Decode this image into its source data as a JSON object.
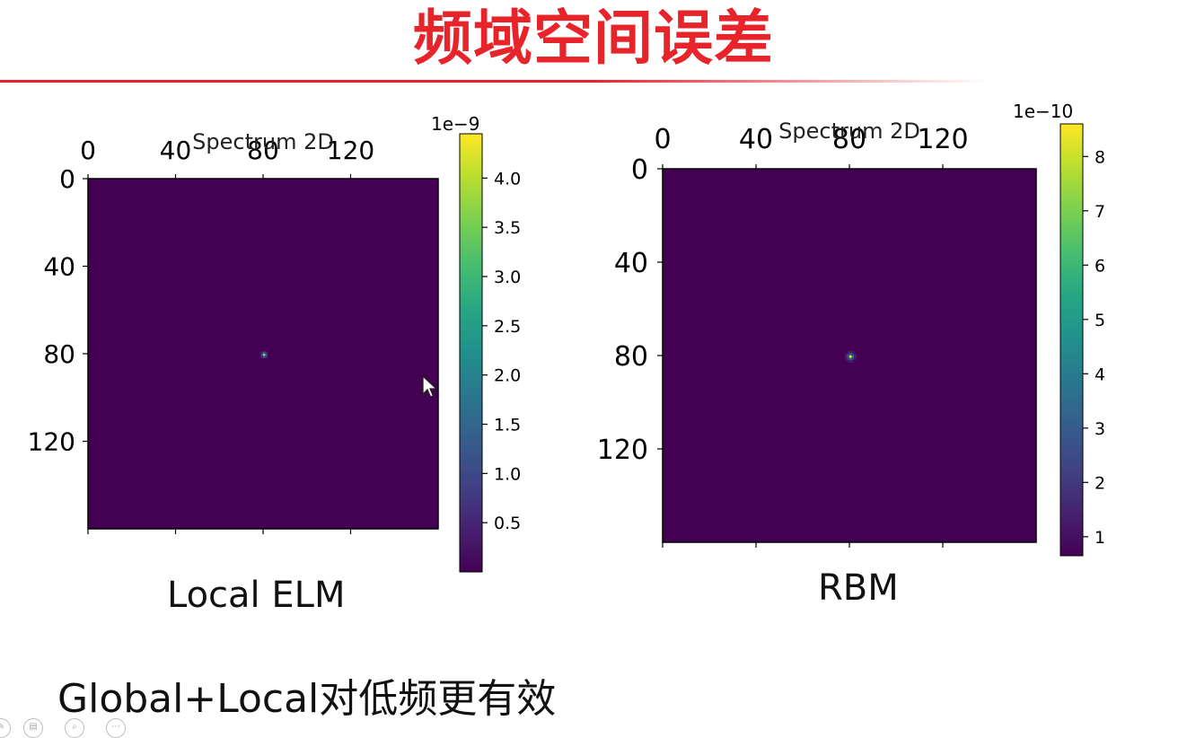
{
  "slide": {
    "title": "频域空间误差",
    "title_color": "#e8242b",
    "footer": "Global+Local对低频更有效"
  },
  "chart_data": [
    {
      "type": "heatmap",
      "title": "Spectrum 2D",
      "caption": "Local ELM",
      "x_ticks": [
        "0",
        "40",
        "80",
        "120"
      ],
      "y_ticks": [
        "0",
        "40",
        "80",
        "120"
      ],
      "x_range": [
        0,
        160
      ],
      "y_range": [
        0,
        160
      ],
      "peak": {
        "x": 80,
        "y": 80,
        "spread": "narrow"
      },
      "colorbar": {
        "colormap": "viridis",
        "scale_label": "1e−9",
        "ticks": [
          "0.5",
          "1.0",
          "1.5",
          "2.0",
          "2.5",
          "3.0",
          "3.5",
          "4.0"
        ],
        "range": [
          0.0,
          4.45
        ]
      }
    },
    {
      "type": "heatmap",
      "title": "Spectrum 2D",
      "caption": "RBM",
      "x_ticks": [
        "0",
        "40",
        "80",
        "120"
      ],
      "y_ticks": [
        "0",
        "40",
        "80",
        "120"
      ],
      "x_range": [
        0,
        160
      ],
      "y_range": [
        0,
        160
      ],
      "peak": {
        "x": 80,
        "y": 80,
        "spread": "wide"
      },
      "colorbar": {
        "colormap": "viridis",
        "scale_label": "1e−10",
        "ticks": [
          "1",
          "2",
          "3",
          "4",
          "5",
          "6",
          "7",
          "8"
        ],
        "range": [
          0.65,
          8.6
        ]
      }
    }
  ],
  "colors": {
    "viridis_low": "#440154",
    "viridis_high": "#fde725"
  },
  "toolbar": {
    "icons": [
      "pen-icon",
      "eraser-icon",
      "zoom-icon",
      "more-icon"
    ]
  }
}
